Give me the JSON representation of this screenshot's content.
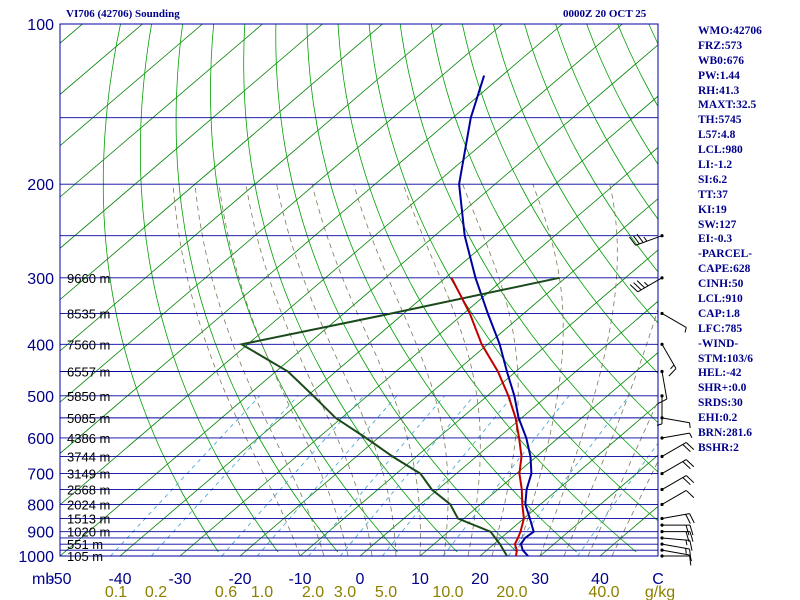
{
  "header": {
    "station": "VI706 (42706) Sounding",
    "time": "0000Z 20 OCT 25"
  },
  "stats": [
    "WMO:42706",
    "FRZ:573",
    "WB0:676",
    "PW:1.44",
    "RH:41.3",
    "MAXT:32.5",
    "TH:5745",
    "L57:4.8",
    "LCL:980",
    "LI:-1.2",
    "SI:6.2",
    "TT:37",
    "KI:19",
    "SW:127",
    "EI:-0.3",
    "-PARCEL-",
    "CAPE:628",
    "CINH:50",
    "LCL:910",
    "CAP:1.8",
    "LFC:785",
    "-WIND-",
    "STM:103/6",
    "HEL:-42",
    "SHR+:0.0",
    "SRDS:30",
    "EHI:0.2",
    "BRN:281.6",
    "BSHR:2"
  ],
  "colors": {
    "background": "#ffffff",
    "isobar": "#0000a0",
    "isotherm": "#008000",
    "dry_adiabat": "#00a000",
    "moist_adiabat": "#7a7a5a",
    "mixing_ratio": "#3aa0d0",
    "temperature": "#0000a0",
    "dewpoint": "#1a4a1a",
    "parcel": "#c00000",
    "text_blue": "#00008b",
    "axis_text_olive": "#8b8000"
  },
  "chart_data": {
    "type": "skew-t",
    "pressure_axis": {
      "ticks": [
        100,
        200,
        300,
        400,
        500,
        600,
        700,
        800,
        900,
        1000
      ],
      "ylim": [
        1000,
        100
      ],
      "scale": "log"
    },
    "temperature_axis": {
      "label": "mb",
      "ticks": [
        -50,
        -40,
        -30,
        -20,
        -10,
        0,
        10,
        20,
        30,
        40
      ],
      "xlim": [
        -50,
        50
      ]
    },
    "mixing_ratio_axis": {
      "unit": "g/kg",
      "ticks": [
        "0.1",
        "0.2",
        "0.6",
        "1.0",
        "2.0",
        "3.0",
        "5.0",
        "10.0",
        "20.0",
        "40.0"
      ]
    },
    "height_labels": [
      {
        "p": 300,
        "text": "9660 m"
      },
      {
        "p": 350,
        "text": "8535 m"
      },
      {
        "p": 400,
        "text": "7560 m"
      },
      {
        "p": 450,
        "text": "6557 m"
      },
      {
        "p": 500,
        "text": "5850 m"
      },
      {
        "p": 550,
        "text": "5085 m"
      },
      {
        "p": 600,
        "text": "4386 m"
      },
      {
        "p": 650,
        "text": "3744 m"
      },
      {
        "p": 700,
        "text": "3149 m"
      },
      {
        "p": 750,
        "text": "2568 m"
      },
      {
        "p": 800,
        "text": "2024 m"
      },
      {
        "p": 850,
        "text": "1513 m"
      },
      {
        "p": 900,
        "text": "1020 m"
      },
      {
        "p": 950,
        "text": "551 m"
      },
      {
        "p": 1000,
        "text": "105 m"
      }
    ],
    "series": [
      {
        "key": "temperature",
        "points": [
          [
            1000,
            28
          ],
          [
            975,
            26
          ],
          [
            950,
            24.5
          ],
          [
            925,
            24
          ],
          [
            900,
            24.2
          ],
          [
            850,
            21
          ],
          [
            800,
            17.5
          ],
          [
            750,
            14.8
          ],
          [
            700,
            12.5
          ],
          [
            650,
            9
          ],
          [
            600,
            4.7
          ],
          [
            550,
            -0.5
          ],
          [
            500,
            -5.5
          ],
          [
            450,
            -11.5
          ],
          [
            400,
            -18
          ],
          [
            350,
            -26
          ],
          [
            300,
            -35
          ],
          [
            250,
            -45
          ],
          [
            200,
            -56
          ],
          [
            150,
            -67
          ],
          [
            125,
            -73
          ]
        ]
      },
      {
        "key": "dewpoint",
        "points": [
          [
            1000,
            24.5
          ],
          [
            950,
            21
          ],
          [
            900,
            17
          ],
          [
            850,
            9
          ],
          [
            800,
            5
          ],
          [
            750,
            -1
          ],
          [
            700,
            -6
          ],
          [
            650,
            -14
          ],
          [
            600,
            -22
          ],
          [
            550,
            -31
          ],
          [
            500,
            -39
          ],
          [
            450,
            -48
          ],
          [
            400,
            -61
          ],
          [
            350,
            -42
          ],
          [
            300,
            -21
          ]
        ]
      },
      {
        "key": "parcel",
        "points": [
          [
            1000,
            26
          ],
          [
            975,
            25
          ],
          [
            950,
            23.5
          ],
          [
            925,
            22.8
          ],
          [
            900,
            22
          ],
          [
            850,
            20
          ],
          [
            800,
            17
          ],
          [
            750,
            14
          ],
          [
            700,
            10.5
          ],
          [
            650,
            7.5
          ],
          [
            600,
            3.5
          ],
          [
            550,
            -1
          ],
          [
            500,
            -6.5
          ],
          [
            450,
            -13
          ],
          [
            400,
            -21
          ],
          [
            350,
            -29
          ],
          [
            300,
            -39
          ]
        ]
      }
    ],
    "wind_barbs": [
      {
        "p": 1000,
        "dir": 90,
        "kt": 5
      },
      {
        "p": 975,
        "dir": 100,
        "kt": 10
      },
      {
        "p": 950,
        "dir": 100,
        "kt": 15
      },
      {
        "p": 925,
        "dir": 95,
        "kt": 15
      },
      {
        "p": 900,
        "dir": 90,
        "kt": 20
      },
      {
        "p": 875,
        "dir": 90,
        "kt": 20
      },
      {
        "p": 850,
        "dir": 80,
        "kt": 20
      },
      {
        "p": 800,
        "dir": 60,
        "kt": 10
      },
      {
        "p": 750,
        "dir": 60,
        "kt": 20
      },
      {
        "p": 700,
        "dir": 60,
        "kt": 20
      },
      {
        "p": 650,
        "dir": 60,
        "kt": 20
      },
      {
        "p": 600,
        "dir": 80,
        "kt": 5
      },
      {
        "p": 550,
        "dir": 100,
        "kt": 5
      },
      {
        "p": 500,
        "dir": 180,
        "kt": 5
      },
      {
        "p": 450,
        "dir": 170,
        "kt": 10
      },
      {
        "p": 400,
        "dir": 150,
        "kt": 15
      },
      {
        "p": 350,
        "dir": 120,
        "kt": 5
      },
      {
        "p": 300,
        "dir": 240,
        "kt": 35
      },
      {
        "p": 250,
        "dir": 250,
        "kt": 35
      }
    ]
  }
}
